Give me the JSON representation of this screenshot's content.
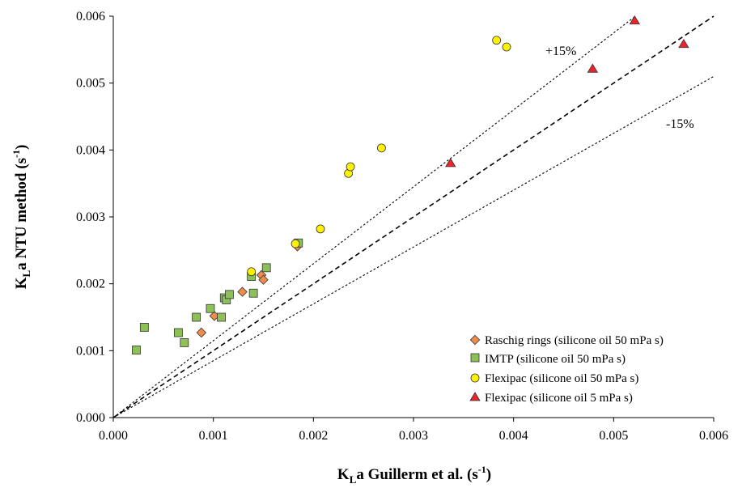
{
  "chart_data": {
    "type": "scatter",
    "xlabel": {
      "main": "K",
      "sub": "L",
      "rest": "a Guillerm et al. (s",
      "sup": "-1",
      "close": ")"
    },
    "ylabel": {
      "main": "K",
      "sub": "L",
      "rest": "a NTU method (s",
      "sup": "-1",
      "close": ")"
    },
    "xlim": [
      0,
      0.006
    ],
    "ylim": [
      0,
      0.006
    ],
    "xticks": [
      "0.000",
      "0.001",
      "0.002",
      "0.003",
      "0.004",
      "0.005",
      "0.006"
    ],
    "yticks": [
      "0.000",
      "0.001",
      "0.002",
      "0.003",
      "0.004",
      "0.005",
      "0.006"
    ],
    "grid": false,
    "legend_position": "bottom-right",
    "reference_lines": [
      {
        "label": "",
        "slope": 1.0,
        "style": "dashed"
      },
      {
        "label": "+15%",
        "slope": 1.15,
        "style": "dotted"
      },
      {
        "label": "-15%",
        "slope": 0.85,
        "style": "dotted"
      }
    ],
    "series": [
      {
        "name": "Raschig rings (silicone oil 50 mPa s)",
        "marker": "diamond",
        "color": "#F08C4A",
        "points": [
          [
            0.00088,
            0.00127
          ],
          [
            0.00101,
            0.00152
          ],
          [
            0.00129,
            0.00188
          ],
          [
            0.00148,
            0.00213
          ],
          [
            0.0015,
            0.00206
          ],
          [
            0.00184,
            0.00256
          ]
        ]
      },
      {
        "name": "IMTP (silicone oil 50 mPa s)",
        "marker": "square",
        "color": "#8DC158",
        "points": [
          [
            0.00023,
            0.00101
          ],
          [
            0.00031,
            0.00135
          ],
          [
            0.00065,
            0.00127
          ],
          [
            0.00071,
            0.00112
          ],
          [
            0.00083,
            0.0015
          ],
          [
            0.00097,
            0.00163
          ],
          [
            0.00108,
            0.0015
          ],
          [
            0.00111,
            0.00179
          ],
          [
            0.00113,
            0.00176
          ],
          [
            0.00116,
            0.00184
          ],
          [
            0.00138,
            0.00211
          ],
          [
            0.0014,
            0.00186
          ],
          [
            0.00153,
            0.00224
          ],
          [
            0.00185,
            0.00261
          ]
        ]
      },
      {
        "name": "Flexipac (silicone oil 50 mPa s)",
        "marker": "circle",
        "color": "#FFF200",
        "points": [
          [
            0.00138,
            0.00218
          ],
          [
            0.00182,
            0.0026
          ],
          [
            0.00207,
            0.00282
          ],
          [
            0.00235,
            0.00365
          ],
          [
            0.00237,
            0.00375
          ],
          [
            0.00268,
            0.00403
          ],
          [
            0.00383,
            0.00564
          ],
          [
            0.00393,
            0.00554
          ]
        ]
      },
      {
        "name": "Flexipac (silicone oil 5 mPa s)",
        "marker": "triangle",
        "color": "#E8262C",
        "points": [
          [
            0.00337,
            0.0038
          ],
          [
            0.00479,
            0.00521
          ],
          [
            0.00521,
            0.00593
          ],
          [
            0.0057,
            0.00558
          ]
        ]
      }
    ]
  }
}
